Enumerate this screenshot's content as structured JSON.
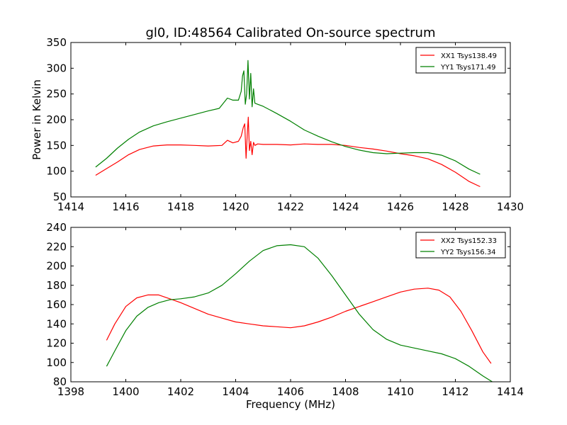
{
  "figure": {
    "title": "gl0, ID:48564 Calibrated On-source spectrum"
  },
  "chart_data": [
    {
      "type": "line",
      "title": "gl0, ID:48564 Calibrated On-source spectrum",
      "xlabel": "",
      "ylabel": "Power in Kelvin",
      "xlim": [
        1414,
        1430
      ],
      "ylim": [
        50,
        350
      ],
      "xticks": [
        1414,
        1416,
        1418,
        1420,
        1422,
        1424,
        1426,
        1428,
        1430
      ],
      "yticks": [
        50,
        100,
        150,
        200,
        250,
        300,
        350
      ],
      "grid": false,
      "legend": "top-right",
      "series": [
        {
          "name": "XX1 Tsys138.49",
          "color": "#ff0000",
          "x": [
            1414.9,
            1415.3,
            1415.7,
            1416.1,
            1416.5,
            1417.0,
            1417.5,
            1418.0,
            1418.5,
            1419.0,
            1419.5,
            1419.7,
            1419.9,
            1420.1,
            1420.2,
            1420.28,
            1420.33,
            1420.38,
            1420.42,
            1420.46,
            1420.5,
            1420.55,
            1420.6,
            1420.65,
            1420.7,
            1420.8,
            1421.0,
            1421.5,
            1422.0,
            1422.5,
            1423.0,
            1423.5,
            1424.0,
            1424.5,
            1425.0,
            1425.5,
            1426.0,
            1426.5,
            1427.0,
            1427.5,
            1428.0,
            1428.5,
            1428.9
          ],
          "y": [
            92,
            105,
            118,
            132,
            142,
            149,
            151,
            151,
            150,
            149,
            150,
            160,
            155,
            158,
            168,
            185,
            192,
            125,
            170,
            205,
            140,
            158,
            132,
            156,
            150,
            153,
            152,
            152,
            151,
            153,
            152,
            152,
            150,
            146,
            143,
            139,
            134,
            130,
            124,
            113,
            98,
            80,
            70
          ]
        },
        {
          "name": "YY1 Tsys171.49",
          "color": "#008000",
          "x": [
            1414.9,
            1415.3,
            1415.7,
            1416.1,
            1416.5,
            1417.0,
            1417.5,
            1418.0,
            1418.5,
            1419.0,
            1419.4,
            1419.7,
            1419.9,
            1420.1,
            1420.2,
            1420.25,
            1420.3,
            1420.35,
            1420.4,
            1420.45,
            1420.5,
            1420.55,
            1420.6,
            1420.65,
            1420.7,
            1420.8,
            1421.0,
            1421.5,
            1422.0,
            1422.5,
            1423.0,
            1423.5,
            1424.0,
            1424.5,
            1425.0,
            1425.5,
            1426.0,
            1426.5,
            1427.0,
            1427.5,
            1428.0,
            1428.5,
            1428.9
          ],
          "y": [
            108,
            125,
            145,
            162,
            176,
            188,
            196,
            203,
            210,
            217,
            222,
            242,
            238,
            238,
            255,
            285,
            295,
            230,
            250,
            315,
            240,
            290,
            225,
            260,
            232,
            230,
            226,
            212,
            197,
            180,
            168,
            157,
            148,
            141,
            136,
            134,
            135,
            136,
            136,
            131,
            120,
            104,
            94
          ]
        }
      ]
    },
    {
      "type": "line",
      "title": "",
      "xlabel": "Frequency (MHz)",
      "ylabel": "",
      "xlim": [
        1398,
        1414
      ],
      "ylim": [
        80,
        240
      ],
      "xticks": [
        1398,
        1400,
        1402,
        1404,
        1406,
        1408,
        1410,
        1412,
        1414
      ],
      "yticks": [
        80,
        100,
        120,
        140,
        160,
        180,
        200,
        220,
        240
      ],
      "grid": false,
      "legend": "top-right",
      "series": [
        {
          "name": "XX2 Tsys152.33",
          "color": "#ff0000",
          "x": [
            1399.3,
            1399.6,
            1400.0,
            1400.4,
            1400.8,
            1401.2,
            1401.6,
            1402.0,
            1402.5,
            1403.0,
            1403.5,
            1404.0,
            1404.5,
            1405.0,
            1405.5,
            1406.0,
            1406.5,
            1407.0,
            1407.5,
            1408.0,
            1408.5,
            1409.0,
            1409.5,
            1410.0,
            1410.5,
            1411.0,
            1411.4,
            1411.8,
            1412.2,
            1412.6,
            1413.0,
            1413.3
          ],
          "y": [
            123,
            140,
            158,
            167,
            170,
            170,
            166,
            162,
            156,
            150,
            146,
            142,
            140,
            138,
            137,
            136,
            138,
            142,
            147,
            153,
            158,
            163,
            168,
            173,
            176,
            177,
            175,
            168,
            153,
            133,
            111,
            99
          ]
        },
        {
          "name": "YY2 Tsys156.34",
          "color": "#008000",
          "x": [
            1399.3,
            1399.6,
            1400.0,
            1400.4,
            1400.8,
            1401.2,
            1401.6,
            1402.0,
            1402.5,
            1403.0,
            1403.5,
            1404.0,
            1404.5,
            1405.0,
            1405.5,
            1406.0,
            1406.5,
            1407.0,
            1407.5,
            1408.0,
            1408.5,
            1409.0,
            1409.5,
            1410.0,
            1410.5,
            1411.0,
            1411.5,
            1412.0,
            1412.5,
            1413.0,
            1413.4
          ],
          "y": [
            96,
            112,
            133,
            148,
            157,
            162,
            165,
            166,
            168,
            172,
            180,
            192,
            205,
            216,
            221,
            222,
            220,
            208,
            190,
            170,
            150,
            134,
            124,
            118,
            115,
            112,
            109,
            104,
            96,
            86,
            79
          ]
        }
      ]
    }
  ]
}
